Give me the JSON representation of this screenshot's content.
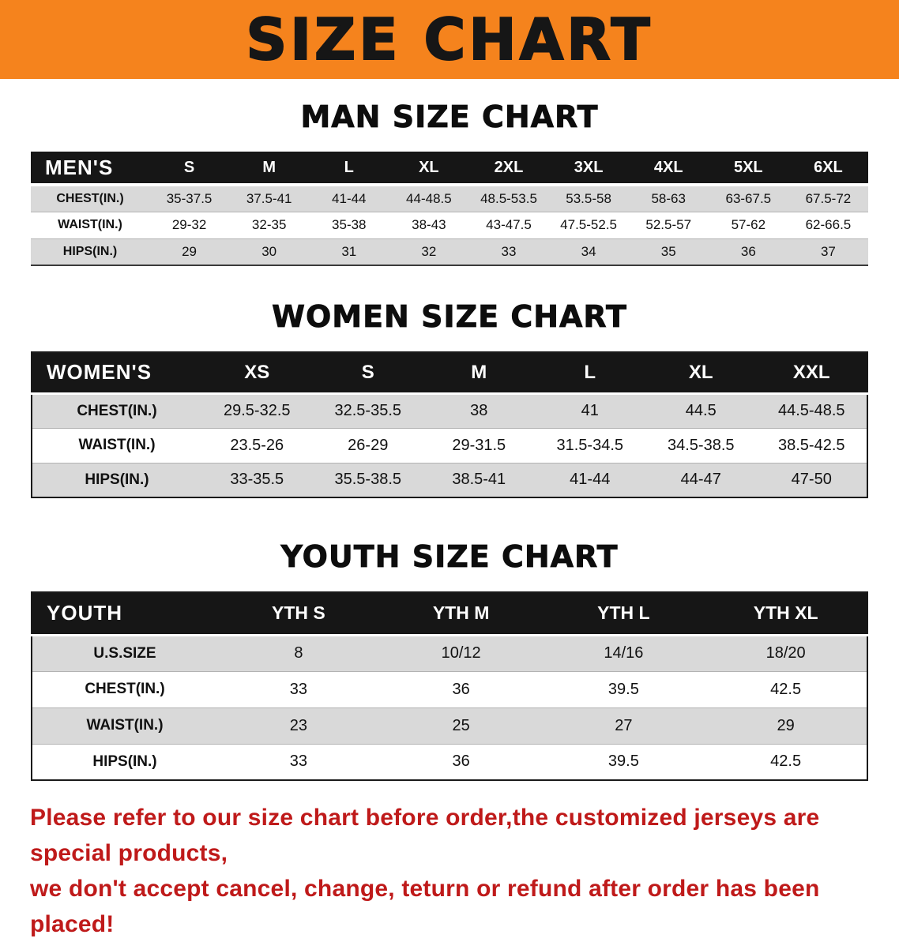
{
  "banner": {
    "title": "SIZE CHART"
  },
  "colors": {
    "banner_orange": "#f5831d",
    "table_header_black": "#161616",
    "row_gray": "#d9d9d9",
    "disclaimer_red": "#bf1a1a"
  },
  "sections": [
    {
      "heading": "MAN SIZE CHART",
      "table": {
        "header": [
          "MEN'S",
          "S",
          "M",
          "L",
          "XL",
          "2XL",
          "3XL",
          "4XL",
          "5XL",
          "6XL"
        ],
        "rows": [
          [
            "CHEST(IN.)",
            "35-37.5",
            "37.5-41",
            "41-44",
            "44-48.5",
            "48.5-53.5",
            "53.5-58",
            "58-63",
            "63-67.5",
            "67.5-72"
          ],
          [
            "WAIST(IN.)",
            "29-32",
            "32-35",
            "35-38",
            "38-43",
            "43-47.5",
            "47.5-52.5",
            "52.5-57",
            "57-62",
            "62-66.5"
          ],
          [
            "HIPS(IN.)",
            "29",
            "30",
            "31",
            "32",
            "33",
            "34",
            "35",
            "36",
            "37"
          ]
        ]
      }
    },
    {
      "heading": "WOMEN SIZE CHART",
      "table": {
        "header": [
          "WOMEN'S",
          "XS",
          "S",
          "M",
          "L",
          "XL",
          "XXL"
        ],
        "rows": [
          [
            "CHEST(IN.)",
            "29.5-32.5",
            "32.5-35.5",
            "38",
            "41",
            "44.5",
            "44.5-48.5"
          ],
          [
            "WAIST(IN.)",
            "23.5-26",
            "26-29",
            "29-31.5",
            "31.5-34.5",
            "34.5-38.5",
            "38.5-42.5"
          ],
          [
            "HIPS(IN.)",
            "33-35.5",
            "35.5-38.5",
            "38.5-41",
            "41-44",
            "44-47",
            "47-50"
          ]
        ]
      }
    },
    {
      "heading": "YOUTH SIZE CHART",
      "table": {
        "header": [
          "YOUTH",
          "YTH S",
          "YTH M",
          "YTH L",
          "YTH XL"
        ],
        "rows": [
          [
            "U.S.SIZE",
            "8",
            "10/12",
            "14/16",
            "18/20"
          ],
          [
            "CHEST(IN.)",
            "33",
            "36",
            "39.5",
            "42.5"
          ],
          [
            "WAIST(IN.)",
            "23",
            "25",
            "27",
            "29"
          ],
          [
            "HIPS(IN.)",
            "33",
            "36",
            "39.5",
            "42.5"
          ]
        ]
      }
    }
  ],
  "footer": {
    "line1": "Please refer to our size chart before order,the customized jerseys are special products,",
    "line2": "we don't accept cancel, change, teturn or refund after order has been placed!"
  }
}
